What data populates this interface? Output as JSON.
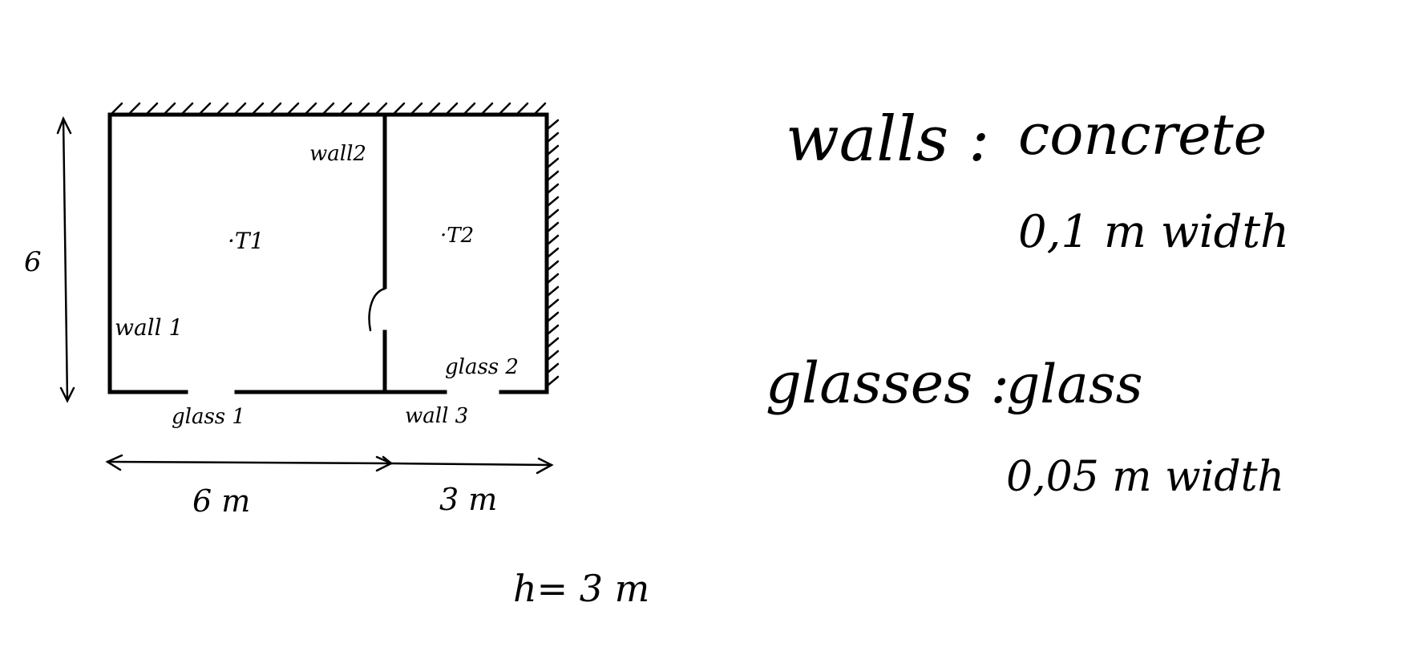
{
  "labels": {
    "wall1": "wall 1",
    "wall2": "wall2",
    "wall3": "wall 3",
    "glass1": "glass 1",
    "glass2": "glass 2",
    "t1": "·T1",
    "t2": "·T2",
    "height_left": "6",
    "width_left": "6 m",
    "width_right": "3 m",
    "height_room": "h= 3 m"
  },
  "legend": {
    "walls_key": "walls :",
    "walls_material": "concrete",
    "walls_width": "0,1 m  width",
    "glasses_key": "glasses :",
    "glasses_material": "glass",
    "glasses_width": "0,05 m  width"
  }
}
